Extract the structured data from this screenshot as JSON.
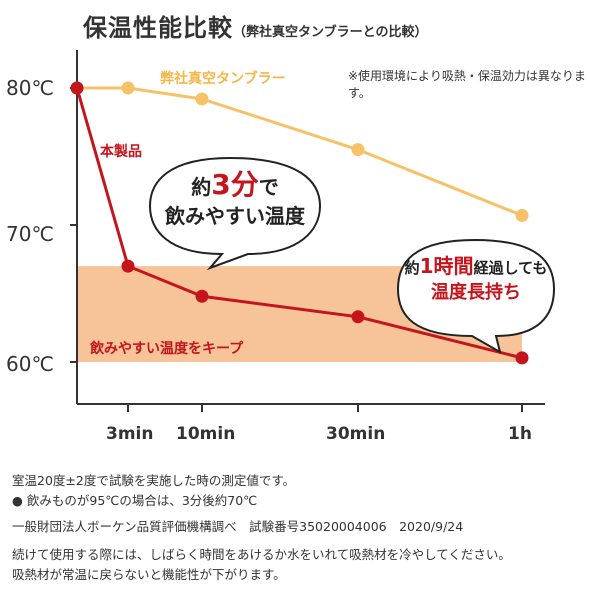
{
  "title": "保温性能比較",
  "subtitle": "（弊社真空タンブラーとの比較）",
  "note": "※使用環境により吸熱・保温効力は異なります。",
  "bubbles": {
    "left": {
      "line1_prefix": "約",
      "line1_highlight": "3分",
      "line1_suffix": "で",
      "line2": "飲みやすい温度"
    },
    "right": {
      "line1_prefix": "約",
      "line1_highlight": "1時間",
      "line1_suffix": "経過しても",
      "line2": "温度長持ち"
    }
  },
  "footer": {
    "line1": "室温20度±2度で試験を実施した時の測定値です。",
    "line2": "●  飲みものが95℃の場合は、3分後約70℃",
    "line3": "一般財団法人ボーケン品質評価機構調べ　試験番号35020004006　2020/9/24",
    "line4": "続けて使用する際には、しばらく時間をあけるか水をいれて吸熱材を冷やしてください。",
    "line5": "吸熱材が常温に戻らないと機能性が下がります。"
  },
  "colors": {
    "product": "#c4151c",
    "comparison": "#f7c267",
    "band": "#f7c49a",
    "axis": "#333333"
  },
  "chart_data": {
    "type": "line",
    "x": [
      "0",
      "3min",
      "10min",
      "30min",
      "1h"
    ],
    "x_tick_labels": [
      "3min",
      "10min",
      "30min",
      "1h"
    ],
    "y_tick_labels": [
      "80℃",
      "70℃",
      "60℃"
    ],
    "ylim": [
      57,
      80
    ],
    "band": {
      "label": "飲みやすい温度をキープ",
      "from": 60,
      "to": 67
    },
    "series": [
      {
        "name": "弊社真空タンブラー",
        "color": "#f7c267",
        "values": [
          80,
          80,
          79.2,
          75.5,
          70.7
        ]
      },
      {
        "name": "本製品",
        "color": "#c4151c",
        "values": [
          80,
          67,
          64.8,
          63.3,
          60.3
        ]
      }
    ]
  }
}
